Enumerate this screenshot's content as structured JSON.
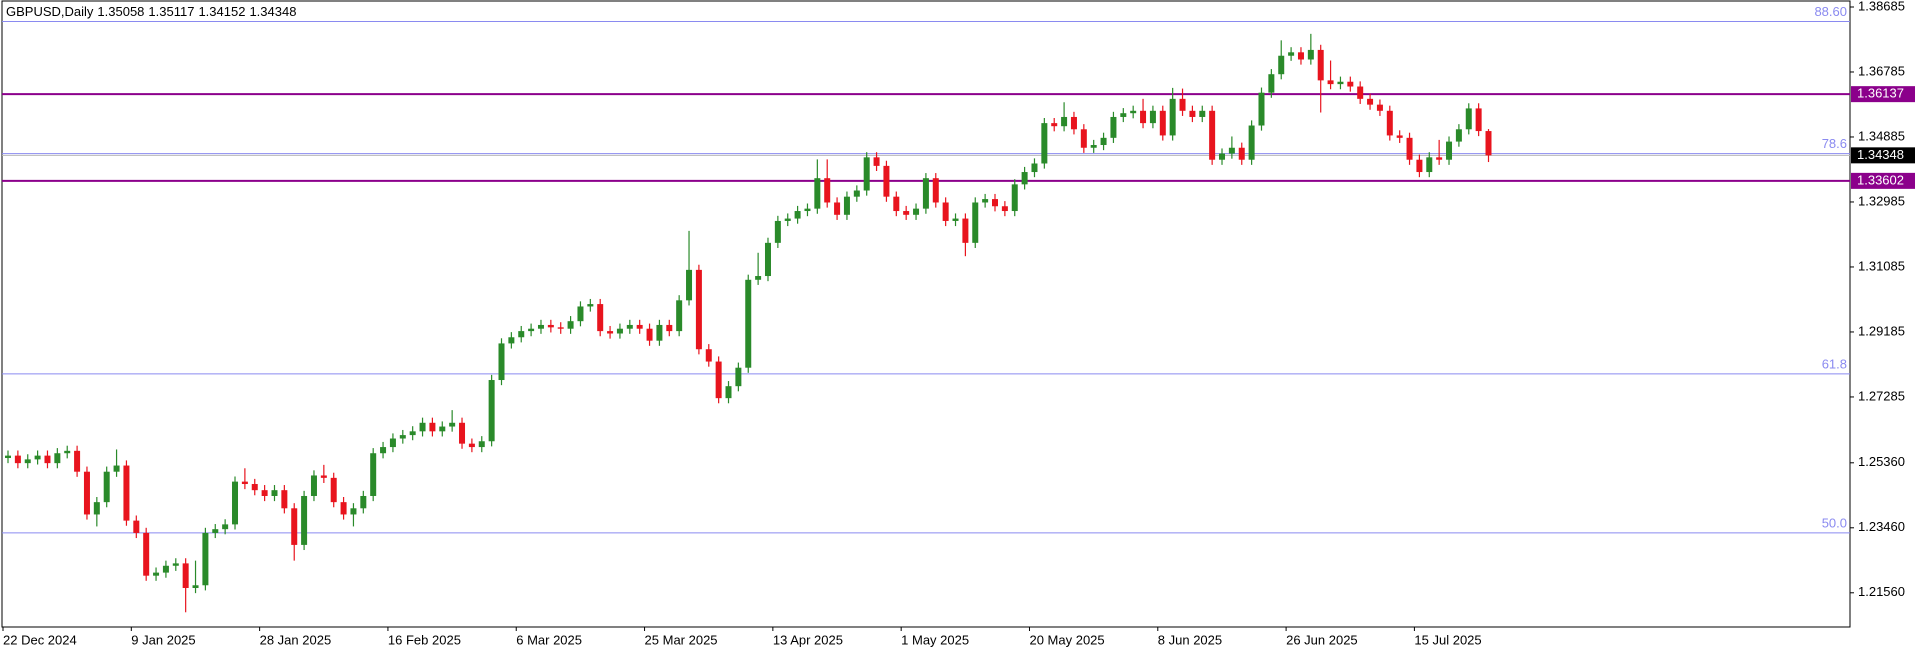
{
  "chart_data": {
    "type": "candlestick",
    "symbol": "GBPUSD,Daily",
    "categories": [
      "22 Dec 2024",
      null,
      null,
      null,
      null,
      null,
      null,
      null,
      null,
      null,
      null,
      null,
      null,
      "9 Jan 2025",
      null,
      null,
      null,
      null,
      null,
      null,
      null,
      null,
      null,
      null,
      null,
      null,
      "28 Jan 2025",
      null,
      null,
      null,
      null,
      null,
      null,
      null,
      null,
      null,
      null,
      null,
      null,
      "16 Feb 2025",
      null,
      null,
      null,
      null,
      null,
      null,
      null,
      null,
      null,
      null,
      null,
      null,
      "6 Mar 2025",
      null,
      null,
      null,
      null,
      null,
      null,
      null,
      null,
      null,
      null,
      null,
      null,
      "25 Mar 2025",
      null,
      null,
      null,
      null,
      null,
      null,
      null,
      null,
      null,
      null,
      null,
      null,
      "13 Apr 2025",
      null,
      null,
      null,
      null,
      null,
      null,
      null,
      null,
      null,
      null,
      null,
      null,
      "1 May 2025",
      null,
      null,
      null,
      null,
      null,
      null,
      null,
      null,
      null,
      null,
      null,
      null,
      "20 May 2025",
      null,
      null,
      null,
      null,
      null,
      null,
      null,
      null,
      null,
      null,
      null,
      null,
      "8 Jun 2025",
      null,
      null,
      null,
      null,
      null,
      null,
      null,
      null,
      null,
      null,
      null,
      null,
      "26 Jun 2025",
      null,
      null,
      null,
      null,
      null,
      null,
      null,
      null,
      null,
      null,
      null,
      null,
      "15 Jul 2025",
      null,
      null,
      null,
      null,
      null,
      null,
      null
    ],
    "open": [
      1.255,
      1.2557,
      1.2535,
      1.2546,
      1.2557,
      1.2535,
      1.2564,
      1.2571,
      1.251,
      1.2385,
      1.2421,
      1.251,
      1.2528,
      1.2367,
      1.2331,
      1.2206,
      1.2215,
      1.2235,
      1.2242,
      1.217,
      1.2178,
      1.2331,
      1.2342,
      1.2356,
      1.2481,
      1.2474,
      1.2456,
      1.2439,
      1.2456,
      1.2403,
      1.2296,
      1.2439,
      1.2499,
      1.2492,
      1.2421,
      1.2385,
      1.2403,
      1.2439,
      1.2564,
      1.2582,
      1.2607,
      1.2617,
      1.2628,
      1.2653,
      1.2628,
      1.2642,
      1.2653,
      1.2592,
      1.2582,
      1.2599,
      1.2778,
      1.2885,
      1.2903,
      1.2921,
      1.2928,
      1.2939,
      1.2932,
      1.2928,
      1.295,
      1.2993,
      1.3,
      1.2921,
      1.2914,
      1.2928,
      1.2939,
      1.2928,
      1.2893,
      1.2939,
      1.2921,
      1.3011,
      1.31,
      1.2868,
      1.2832,
      1.2725,
      1.276,
      1.2814,
      1.3071,
      1.3082,
      1.3179,
      1.3243,
      1.325,
      1.3272,
      1.3279,
      1.3368,
      1.3297,
      1.3261,
      1.3314,
      1.3332,
      1.3429,
      1.3404,
      1.3314,
      1.3272,
      1.3261,
      1.3279,
      1.3368,
      1.3297,
      1.3243,
      1.325,
      1.3179,
      1.3297,
      1.3307,
      1.3286,
      1.3272,
      1.335,
      1.3386,
      1.3411,
      1.3529,
      1.352,
      1.3547,
      1.3511,
      1.3457,
      1.3465,
      1.3486,
      1.3547,
      1.3558,
      1.3565,
      1.3529,
      1.3565,
      1.3493,
      1.36,
      1.3565,
      1.3547,
      1.3565,
      1.3422,
      1.344,
      1.3457,
      1.3422,
      1.3522,
      1.3618,
      1.3672,
      1.3726,
      1.3736,
      1.3715,
      1.3743,
      1.3654,
      1.3643,
      1.365,
      1.3636,
      1.36,
      1.3583,
      1.3565,
      1.3493,
      1.3486,
      1.3422,
      1.3386,
      1.3429,
      1.3422,
      1.3475,
      1.3511,
      1.3572,
      1.35058
    ],
    "high": [
      1.2572,
      1.2572,
      1.2561,
      1.2572,
      1.2572,
      1.2579,
      1.2586,
      1.2586,
      1.2525,
      1.2436,
      1.2525,
      1.2575,
      1.2543,
      1.2382,
      1.2346,
      1.223,
      1.225,
      1.2257,
      1.2257,
      1.225,
      1.2346,
      1.2357,
      1.2371,
      1.2496,
      1.252,
      1.2489,
      1.2471,
      1.2471,
      1.2471,
      1.2418,
      1.2454,
      1.2514,
      1.253,
      1.2507,
      1.2436,
      1.2418,
      1.2454,
      1.2579,
      1.2597,
      1.2622,
      1.2632,
      1.2643,
      1.2668,
      1.2668,
      1.2657,
      1.269,
      1.2668,
      1.2607,
      1.2614,
      1.2793,
      1.29,
      1.2918,
      1.2936,
      1.2943,
      1.2954,
      1.2954,
      1.2947,
      1.2965,
      1.3008,
      1.3015,
      1.3015,
      1.2936,
      1.2943,
      1.2954,
      1.2954,
      1.2943,
      1.2954,
      1.2954,
      1.3026,
      1.3214,
      1.3115,
      1.2883,
      1.2847,
      1.2775,
      1.2829,
      1.3086,
      1.315,
      1.3194,
      1.3258,
      1.3265,
      1.3287,
      1.3294,
      1.3423,
      1.3423,
      1.3312,
      1.3329,
      1.3347,
      1.3444,
      1.3444,
      1.3419,
      1.3329,
      1.3287,
      1.3294,
      1.3383,
      1.3383,
      1.3312,
      1.3265,
      1.3265,
      1.3312,
      1.3322,
      1.3322,
      1.3301,
      1.3365,
      1.3401,
      1.3426,
      1.3544,
      1.3544,
      1.359,
      1.3562,
      1.3526,
      1.348,
      1.3501,
      1.3562,
      1.3573,
      1.358,
      1.36,
      1.358,
      1.358,
      1.3632,
      1.363,
      1.358,
      1.358,
      1.358,
      1.3455,
      1.349,
      1.3472,
      1.3537,
      1.3633,
      1.3687,
      1.3771,
      1.3751,
      1.3751,
      1.379,
      1.3758,
      1.3712,
      1.3665,
      1.3665,
      1.3651,
      1.3615,
      1.3598,
      1.358,
      1.3508,
      1.3501,
      1.3437,
      1.3444,
      1.348,
      1.349,
      1.3526,
      1.3587,
      1.3587,
      1.35117
    ],
    "low": [
      1.2535,
      1.252,
      1.252,
      1.2531,
      1.252,
      1.252,
      1.2549,
      1.2495,
      1.237,
      1.235,
      1.2406,
      1.2495,
      1.2352,
      1.2316,
      1.2191,
      1.2191,
      1.22,
      1.222,
      1.2099,
      1.2155,
      1.2163,
      1.2316,
      1.2327,
      1.2341,
      1.2459,
      1.2441,
      1.2424,
      1.2424,
      1.2388,
      1.225,
      1.2281,
      1.2424,
      1.2477,
      1.2406,
      1.237,
      1.235,
      1.2388,
      1.2424,
      1.2549,
      1.2567,
      1.2592,
      1.2602,
      1.2613,
      1.2613,
      1.2613,
      1.2627,
      1.2577,
      1.2567,
      1.2567,
      1.2584,
      1.2763,
      1.287,
      1.2888,
      1.2906,
      1.2913,
      1.2917,
      1.2913,
      1.2913,
      1.2935,
      1.2978,
      1.2906,
      1.2899,
      1.2899,
      1.2913,
      1.2913,
      1.2878,
      1.2878,
      1.2906,
      1.2906,
      1.2996,
      1.2853,
      1.2817,
      1.271,
      1.271,
      1.2745,
      1.2799,
      1.3056,
      1.3067,
      1.3164,
      1.3228,
      1.3235,
      1.3257,
      1.3264,
      1.3282,
      1.3246,
      1.3246,
      1.3299,
      1.3317,
      1.3389,
      1.3299,
      1.3257,
      1.3246,
      1.3246,
      1.3264,
      1.3282,
      1.3228,
      1.3228,
      1.314,
      1.3164,
      1.3282,
      1.3271,
      1.3257,
      1.3257,
      1.3335,
      1.3371,
      1.3396,
      1.3505,
      1.3505,
      1.3496,
      1.3442,
      1.3442,
      1.345,
      1.3471,
      1.3532,
      1.3543,
      1.3514,
      1.3514,
      1.3478,
      1.3478,
      1.355,
      1.3532,
      1.3532,
      1.3407,
      1.3407,
      1.3425,
      1.3407,
      1.3407,
      1.3507,
      1.3603,
      1.3657,
      1.3711,
      1.37,
      1.37,
      1.356,
      1.3628,
      1.3628,
      1.3621,
      1.3585,
      1.3568,
      1.355,
      1.3478,
      1.3471,
      1.3407,
      1.3371,
      1.3371,
      1.3407,
      1.3407,
      1.346,
      1.3496,
      1.3491,
      1.34152
    ],
    "close": [
      1.2557,
      1.2535,
      1.2546,
      1.2557,
      1.2535,
      1.2564,
      1.2571,
      1.251,
      1.2385,
      1.2421,
      1.251,
      1.2528,
      1.2367,
      1.2331,
      1.2206,
      1.2215,
      1.2235,
      1.2242,
      1.217,
      1.2178,
      1.2331,
      1.2342,
      1.2356,
      1.2481,
      1.2474,
      1.2456,
      1.2439,
      1.2456,
      1.2403,
      1.2296,
      1.2439,
      1.2499,
      1.2492,
      1.2421,
      1.2385,
      1.2403,
      1.2439,
      1.2564,
      1.2582,
      1.2607,
      1.2617,
      1.2628,
      1.2653,
      1.2628,
      1.2642,
      1.2653,
      1.2592,
      1.2582,
      1.2599,
      1.2778,
      1.2885,
      1.2903,
      1.2921,
      1.2928,
      1.2939,
      1.2932,
      1.2928,
      1.295,
      1.2993,
      1.3,
      1.2921,
      1.2914,
      1.2928,
      1.2939,
      1.2928,
      1.2893,
      1.2939,
      1.2921,
      1.3011,
      1.31,
      1.2868,
      1.2832,
      1.2725,
      1.276,
      1.2814,
      1.3071,
      1.3082,
      1.3179,
      1.3243,
      1.325,
      1.3272,
      1.3279,
      1.3368,
      1.3297,
      1.3261,
      1.3314,
      1.3332,
      1.3429,
      1.3404,
      1.3314,
      1.3272,
      1.3261,
      1.3279,
      1.3368,
      1.3297,
      1.3243,
      1.325,
      1.3179,
      1.3297,
      1.3307,
      1.3286,
      1.3272,
      1.335,
      1.3386,
      1.3411,
      1.3529,
      1.352,
      1.3547,
      1.3511,
      1.3457,
      1.3465,
      1.3486,
      1.3547,
      1.3558,
      1.3565,
      1.3529,
      1.3565,
      1.3493,
      1.36,
      1.3565,
      1.3547,
      1.3565,
      1.3422,
      1.344,
      1.3457,
      1.3422,
      1.3522,
      1.3618,
      1.3672,
      1.3726,
      1.3736,
      1.3715,
      1.3743,
      1.3654,
      1.3643,
      1.365,
      1.3636,
      1.36,
      1.3583,
      1.3565,
      1.3493,
      1.3486,
      1.3422,
      1.3386,
      1.3429,
      1.3422,
      1.3475,
      1.3511,
      1.3572,
      1.35058,
      1.34348
    ],
    "up_color": "#2a8a2a",
    "down_color": "#e8141e",
    "ylim": [
      1.2056,
      1.3886
    ],
    "yticks": [
      1.38685,
      1.36785,
      1.34885,
      1.32985,
      1.31085,
      1.29185,
      1.27285,
      {
        "value": 1.2536,
        "label": "1.25360"
      },
      {
        "value": 1.2346,
        "label": "1.23460"
      },
      {
        "value": 1.2156,
        "label": "1.21560"
      }
    ],
    "levels": [
      {
        "value": 1.36137,
        "color": "#8b008b"
      },
      {
        "value": 1.33602,
        "color": "#8b008b"
      }
    ],
    "fib_color": "#8a8af0",
    "fib_levels": [
      {
        "label": "88.60",
        "value": 1.3826
      },
      {
        "label": "78.6",
        "value": 1.344
      },
      {
        "label": "61.8",
        "value": 1.2796
      },
      {
        "label": "50.0",
        "value": 1.2331
      }
    ],
    "price_line_color": "#b8b8b8"
  }
}
